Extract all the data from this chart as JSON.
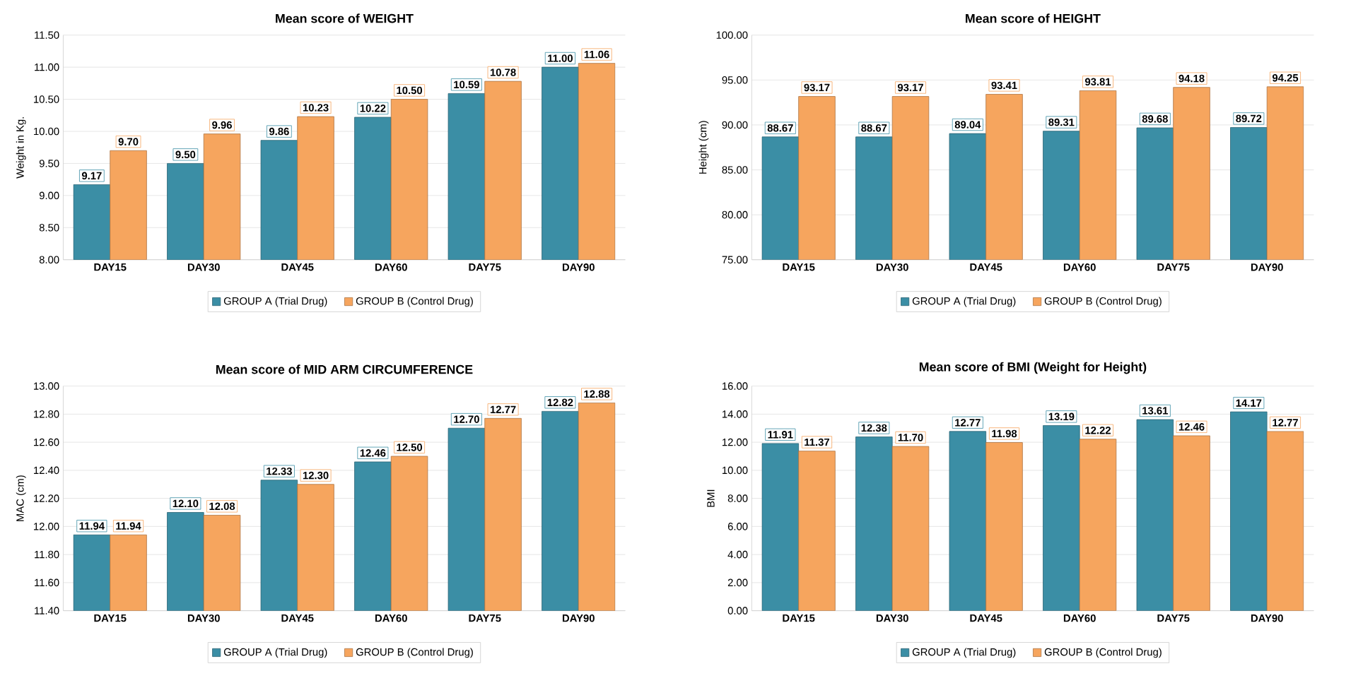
{
  "chart_data": [
    {
      "type": "bar",
      "title": "Mean score of WEIGHT",
      "ylabel": "Weight in Kg.",
      "categories": [
        "DAY15",
        "DAY30",
        "DAY45",
        "DAY60",
        "DAY75",
        "DAY90"
      ],
      "series": [
        {
          "name": "GROUP A (Trial Drug)",
          "color": "#3b8ea5",
          "values": [
            9.17,
            9.5,
            9.86,
            10.22,
            10.59,
            11.0
          ],
          "value_labels": [
            "9.17",
            "9.50",
            "9.86",
            "10.22",
            "10.59",
            "11.00"
          ]
        },
        {
          "name": "GROUP B (Control Drug)",
          "color": "#f6a55e",
          "values": [
            9.7,
            9.96,
            10.23,
            10.5,
            10.78,
            11.06
          ],
          "value_labels": [
            "9.70",
            "9.96",
            "10.23",
            "10.50",
            "10.78",
            "11.06"
          ]
        }
      ],
      "ylim": [
        8,
        11.5
      ],
      "yticks": [
        {
          "value": 8,
          "label": "8.00"
        },
        {
          "value": 8.5,
          "label": "8.50"
        },
        {
          "value": 9,
          "label": "9.00"
        },
        {
          "value": 9.5,
          "label": "9.50"
        },
        {
          "value": 10,
          "label": "10.00"
        },
        {
          "value": 10.5,
          "label": "10.50"
        },
        {
          "value": 11,
          "label": "11.00"
        },
        {
          "value": 11.5,
          "label": "11.50"
        }
      ],
      "grid": "y",
      "legend": "bottom"
    },
    {
      "type": "bar",
      "title": "Mean score of HEIGHT",
      "ylabel": "Height (cm)",
      "categories": [
        "DAY15",
        "DAY30",
        "DAY45",
        "DAY60",
        "DAY75",
        "DAY90"
      ],
      "series": [
        {
          "name": "GROUP A (Trial Drug)",
          "color": "#3b8ea5",
          "values": [
            88.67,
            88.67,
            89.04,
            89.31,
            89.68,
            89.72
          ],
          "value_labels": [
            "88.67",
            "88.67",
            "89.04",
            "89.31",
            "89.68",
            "89.72"
          ]
        },
        {
          "name": "GROUP B (Control Drug)",
          "color": "#f6a55e",
          "values": [
            93.17,
            93.17,
            93.41,
            93.81,
            94.18,
            94.25
          ],
          "value_labels": [
            "93.17",
            "93.17",
            "93.41",
            "93.81",
            "94.18",
            "94.25"
          ]
        }
      ],
      "ylim": [
        75,
        100
      ],
      "yticks": [
        {
          "value": 75,
          "label": "75.00"
        },
        {
          "value": 80,
          "label": "80.00"
        },
        {
          "value": 85,
          "label": "85.00"
        },
        {
          "value": 90,
          "label": "90.00"
        },
        {
          "value": 95,
          "label": "95.00"
        },
        {
          "value": 100,
          "label": "100.00"
        }
      ],
      "grid": "y",
      "legend": "bottom"
    },
    {
      "type": "bar",
      "title": "Mean score of MID ARM CIRCUMFERENCE",
      "ylabel": "MAC (cm)",
      "categories": [
        "DAY15",
        "DAY30",
        "DAY45",
        "DAY60",
        "DAY75",
        "DAY90"
      ],
      "series": [
        {
          "name": "GROUP A (Trial Drug)",
          "color": "#3b8ea5",
          "values": [
            11.94,
            12.1,
            12.33,
            12.46,
            12.7,
            12.82
          ],
          "value_labels": [
            "11.94",
            "12.10",
            "12.33",
            "12.46",
            "12.70",
            "12.82"
          ]
        },
        {
          "name": "GROUP B (Control Drug)",
          "color": "#f6a55e",
          "values": [
            11.94,
            12.08,
            12.3,
            12.5,
            12.77,
            12.88
          ],
          "value_labels": [
            "11.94",
            "12.08",
            "12.30",
            "12.50",
            "12.77",
            "12.88"
          ]
        }
      ],
      "ylim": [
        11.4,
        13
      ],
      "yticks": [
        {
          "value": 11.4,
          "label": "11.40"
        },
        {
          "value": 11.6,
          "label": "11.60"
        },
        {
          "value": 11.8,
          "label": "11.80"
        },
        {
          "value": 12,
          "label": "12.00"
        },
        {
          "value": 12.2,
          "label": "12.20"
        },
        {
          "value": 12.4,
          "label": "12.40"
        },
        {
          "value": 12.6,
          "label": "12.60"
        },
        {
          "value": 12.8,
          "label": "12.80"
        },
        {
          "value": 13,
          "label": "13.00"
        }
      ],
      "grid": "y",
      "legend": "bottom"
    },
    {
      "type": "bar",
      "title": "Mean score of BMI (Weight for Height)",
      "ylabel": "BMI",
      "categories": [
        "DAY15",
        "DAY30",
        "DAY45",
        "DAY60",
        "DAY75",
        "DAY90"
      ],
      "series": [
        {
          "name": "GROUP A (Trial Drug)",
          "color": "#3b8ea5",
          "values": [
            11.91,
            12.38,
            12.77,
            13.19,
            13.61,
            14.17
          ],
          "value_labels": [
            "11.91",
            "12.38",
            "12.77",
            "13.19",
            "13.61",
            "14.17"
          ]
        },
        {
          "name": "GROUP B (Control Drug)",
          "color": "#f6a55e",
          "values": [
            11.37,
            11.7,
            11.98,
            12.22,
            12.46,
            12.77
          ],
          "value_labels": [
            "11.37",
            "11.70",
            "11.98",
            "12.22",
            "12.46",
            "12.77"
          ]
        }
      ],
      "ylim": [
        0,
        16
      ],
      "yticks": [
        {
          "value": 0,
          "label": "0.00"
        },
        {
          "value": 2,
          "label": "2.00"
        },
        {
          "value": 4,
          "label": "4.00"
        },
        {
          "value": 6,
          "label": "6.00"
        },
        {
          "value": 8,
          "label": "8.00"
        },
        {
          "value": 10,
          "label": "10.00"
        },
        {
          "value": 12,
          "label": "12.00"
        },
        {
          "value": 14,
          "label": "14.00"
        },
        {
          "value": 16,
          "label": "16.00"
        }
      ],
      "grid": "y",
      "legend": "bottom"
    }
  ]
}
